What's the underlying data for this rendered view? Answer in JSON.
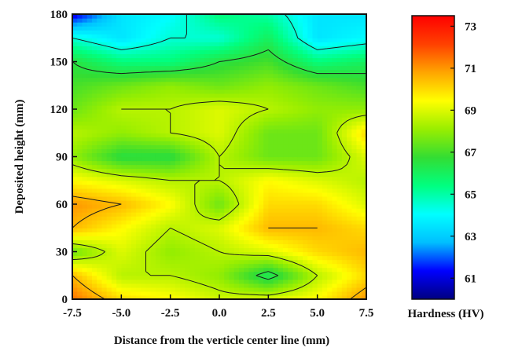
{
  "chart_data": {
    "type": "heatmap",
    "title": "",
    "xlabel": "Distance from the verticle center line  (mm)",
    "ylabel": "Deposited height (mm)",
    "colorbar_label": "Hardness (HV)",
    "xlim": [
      -7.5,
      7.5
    ],
    "ylim": [
      0,
      180
    ],
    "clim": [
      60,
      73.5
    ],
    "x_ticks": [
      -7.5,
      -5.0,
      -2.5,
      0.0,
      2.5,
      5.0,
      7.5
    ],
    "x_tick_labels": [
      "-7.5",
      "-5.0",
      "-2.5",
      "0.0",
      "2.5",
      "5.0",
      "7.5"
    ],
    "y_ticks": [
      0,
      30,
      60,
      90,
      120,
      150,
      180
    ],
    "y_tick_labels": [
      "0",
      "30",
      "60",
      "90",
      "120",
      "150",
      "180"
    ],
    "colorbar_ticks": [
      61,
      63,
      65,
      67,
      69,
      71,
      73
    ],
    "colorbar_tick_labels": [
      "61",
      "63",
      "65",
      "67",
      "69",
      "71",
      "73"
    ],
    "colormap": [
      "#000080",
      "#0000ff",
      "#00bfff",
      "#00ffff",
      "#00ff80",
      "#33dd33",
      "#99ee00",
      "#ffff00",
      "#ffa500",
      "#ff4000",
      "#ff0000"
    ],
    "x": [
      -7.5,
      -5.0,
      -2.5,
      0.0,
      2.5,
      5.0,
      7.5
    ],
    "y": [
      0,
      15,
      30,
      45,
      60,
      75,
      90,
      105,
      120,
      135,
      150,
      165,
      180
    ],
    "z": [
      [
        71.5,
        70.0,
        69.5,
        68.8,
        69.0,
        69.5,
        71.0
      ],
      [
        70.5,
        68.5,
        68.5,
        68.0,
        66.0,
        68.5,
        70.0
      ],
      [
        67.5,
        69.0,
        68.0,
        68.5,
        69.0,
        70.0,
        70.5
      ],
      [
        70.5,
        69.5,
        68.5,
        69.0,
        70.5,
        70.5,
        70.0
      ],
      [
        71.0,
        70.5,
        69.5,
        67.5,
        70.0,
        70.0,
        69.0
      ],
      [
        69.5,
        69.0,
        68.5,
        68.5,
        69.5,
        69.0,
        68.5
      ],
      [
        68.0,
        66.5,
        66.5,
        68.5,
        67.5,
        67.5,
        69.0
      ],
      [
        68.5,
        68.0,
        68.5,
        69.0,
        67.5,
        67.5,
        70.0
      ],
      [
        67.5,
        68.5,
        68.5,
        69.0,
        68.5,
        68.0,
        68.0
      ],
      [
        67.0,
        67.5,
        68.0,
        67.5,
        68.0,
        67.5,
        67.0
      ],
      [
        66.5,
        65.5,
        65.5,
        66.5,
        67.0,
        65.5,
        66.0
      ],
      [
        64.5,
        63.5,
        64.5,
        64.5,
        66.0,
        63.5,
        64.0
      ],
      [
        61.0,
        63.5,
        64.0,
        65.5,
        65.0,
        63.5,
        63.5
      ]
    ],
    "contour_levels": [
      64.5,
      66.5,
      68.5,
      70.5
    ],
    "grid": false
  }
}
